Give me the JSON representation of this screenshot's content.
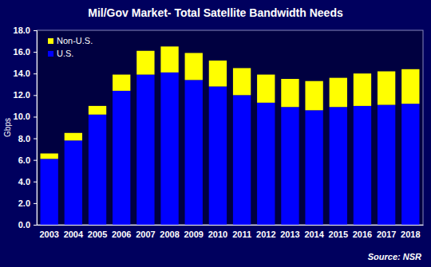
{
  "chart_data": {
    "type": "bar",
    "title": "Mil/Gov Market- Total Satellite Bandwidth Needs",
    "y_label": "Gbps",
    "source": "Source: NSR",
    "stacked": true,
    "grid": false,
    "legend": "upper left",
    "categories": [
      "2003",
      "2004",
      "2005",
      "2006",
      "2007",
      "2008",
      "2009",
      "2010",
      "2011",
      "2012",
      "2013",
      "2014",
      "2015",
      "2016",
      "2017",
      "2018"
    ],
    "series": [
      {
        "name": "U.S.",
        "color": "#0000ff",
        "values": [
          6.1,
          7.8,
          10.2,
          12.4,
          13.9,
          14.1,
          13.4,
          12.8,
          12.0,
          11.3,
          10.9,
          10.6,
          10.9,
          11.0,
          11.1,
          11.2
        ]
      },
      {
        "name": "Non-U.S.",
        "color": "#ffff00",
        "values": [
          0.5,
          0.7,
          0.8,
          1.5,
          2.2,
          2.4,
          2.5,
          2.4,
          2.5,
          2.6,
          2.6,
          2.7,
          2.7,
          3.0,
          3.1,
          3.2
        ]
      }
    ],
    "ylim": [
      0,
      18
    ],
    "yticks": [
      {
        "value": 0,
        "label": "0.0"
      },
      {
        "value": 2,
        "label": "2.0"
      },
      {
        "value": 4,
        "label": "4.0"
      },
      {
        "value": 6,
        "label": "6.0"
      },
      {
        "value": 8,
        "label": "8.0"
      },
      {
        "value": 10,
        "label": "10.0"
      },
      {
        "value": 12,
        "label": "12.0"
      },
      {
        "value": 14,
        "label": "14.0"
      },
      {
        "value": 16,
        "label": "16.0"
      },
      {
        "value": 18,
        "label": "18.0"
      }
    ]
  }
}
